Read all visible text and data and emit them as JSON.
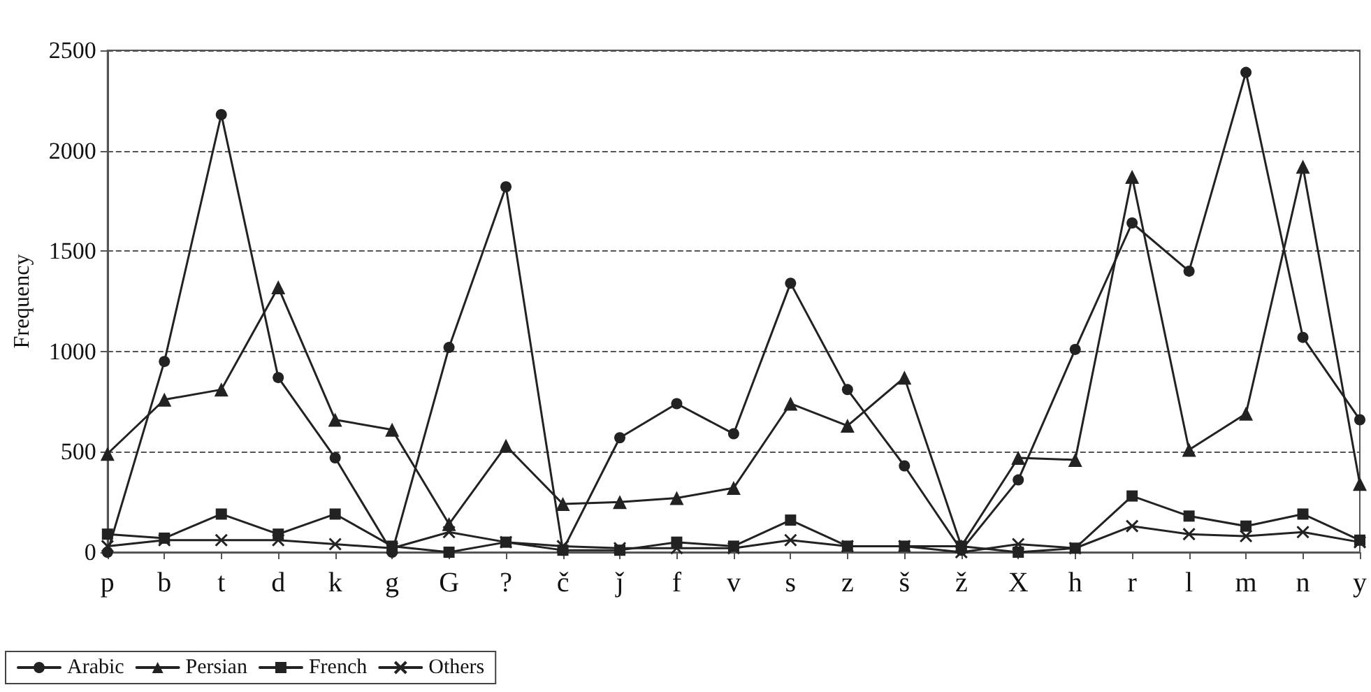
{
  "chart_data": {
    "type": "line",
    "ylabel": "Frequency",
    "categories": [
      "p",
      "b",
      "t",
      "d",
      "k",
      "g",
      "G",
      "?",
      "č",
      "ǰ",
      "f",
      "v",
      "s",
      "z",
      "š",
      "ž",
      "X",
      "h",
      "r",
      "l",
      "m",
      "n",
      "y"
    ],
    "series": [
      {
        "name": "Arabic",
        "color": "#222222",
        "marker": "circle",
        "values": [
          0,
          950,
          2180,
          870,
          470,
          0,
          1020,
          1820,
          10,
          570,
          740,
          590,
          1340,
          810,
          430,
          10,
          360,
          1010,
          1640,
          1400,
          2390,
          1070,
          660
        ]
      },
      {
        "name": "Persian",
        "color": "#222222",
        "marker": "triangle",
        "values": [
          490,
          760,
          810,
          1320,
          660,
          610,
          140,
          530,
          240,
          250,
          270,
          320,
          740,
          630,
          870,
          30,
          470,
          460,
          1870,
          510,
          690,
          1920,
          340
        ]
      },
      {
        "name": "French",
        "color": "#222222",
        "marker": "square",
        "values": [
          90,
          70,
          190,
          90,
          190,
          30,
          0,
          50,
          10,
          10,
          50,
          30,
          160,
          30,
          30,
          30,
          0,
          20,
          280,
          180,
          130,
          190,
          60
        ]
      },
      {
        "name": "Others",
        "color": "#222222",
        "marker": "cross",
        "values": [
          30,
          60,
          60,
          60,
          40,
          20,
          100,
          50,
          30,
          20,
          20,
          20,
          60,
          30,
          30,
          0,
          40,
          20,
          130,
          90,
          80,
          100,
          50
        ]
      }
    ],
    "ylim": [
      0,
      2500
    ],
    "yticks": [
      0,
      500,
      1000,
      1500,
      2000,
      2500
    ],
    "grid": "y",
    "legend": "bottom left",
    "line_style": "solid"
  }
}
